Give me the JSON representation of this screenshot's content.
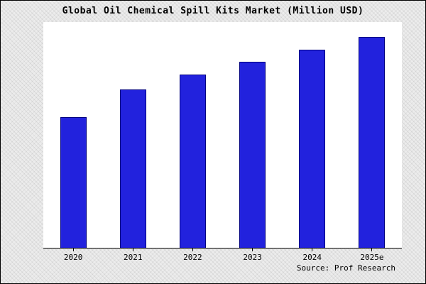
{
  "chart_data": {
    "type": "bar",
    "title": "Global Oil Chemical Spill Kits Market (Million USD)",
    "categories": [
      "2020",
      "2021",
      "2022",
      "2023",
      "2024",
      "2025e"
    ],
    "values": [
      62,
      75,
      82,
      88,
      94,
      100
    ],
    "ylim": [
      0,
      107
    ],
    "xlabel": "",
    "ylabel": "",
    "grid": false,
    "legend": false,
    "bar_color": "#2222DD",
    "bar_border_color": "#000080",
    "plot_background": "#ffffff",
    "outer_background": "#ececec",
    "source_note": "Source: Prof Research"
  }
}
